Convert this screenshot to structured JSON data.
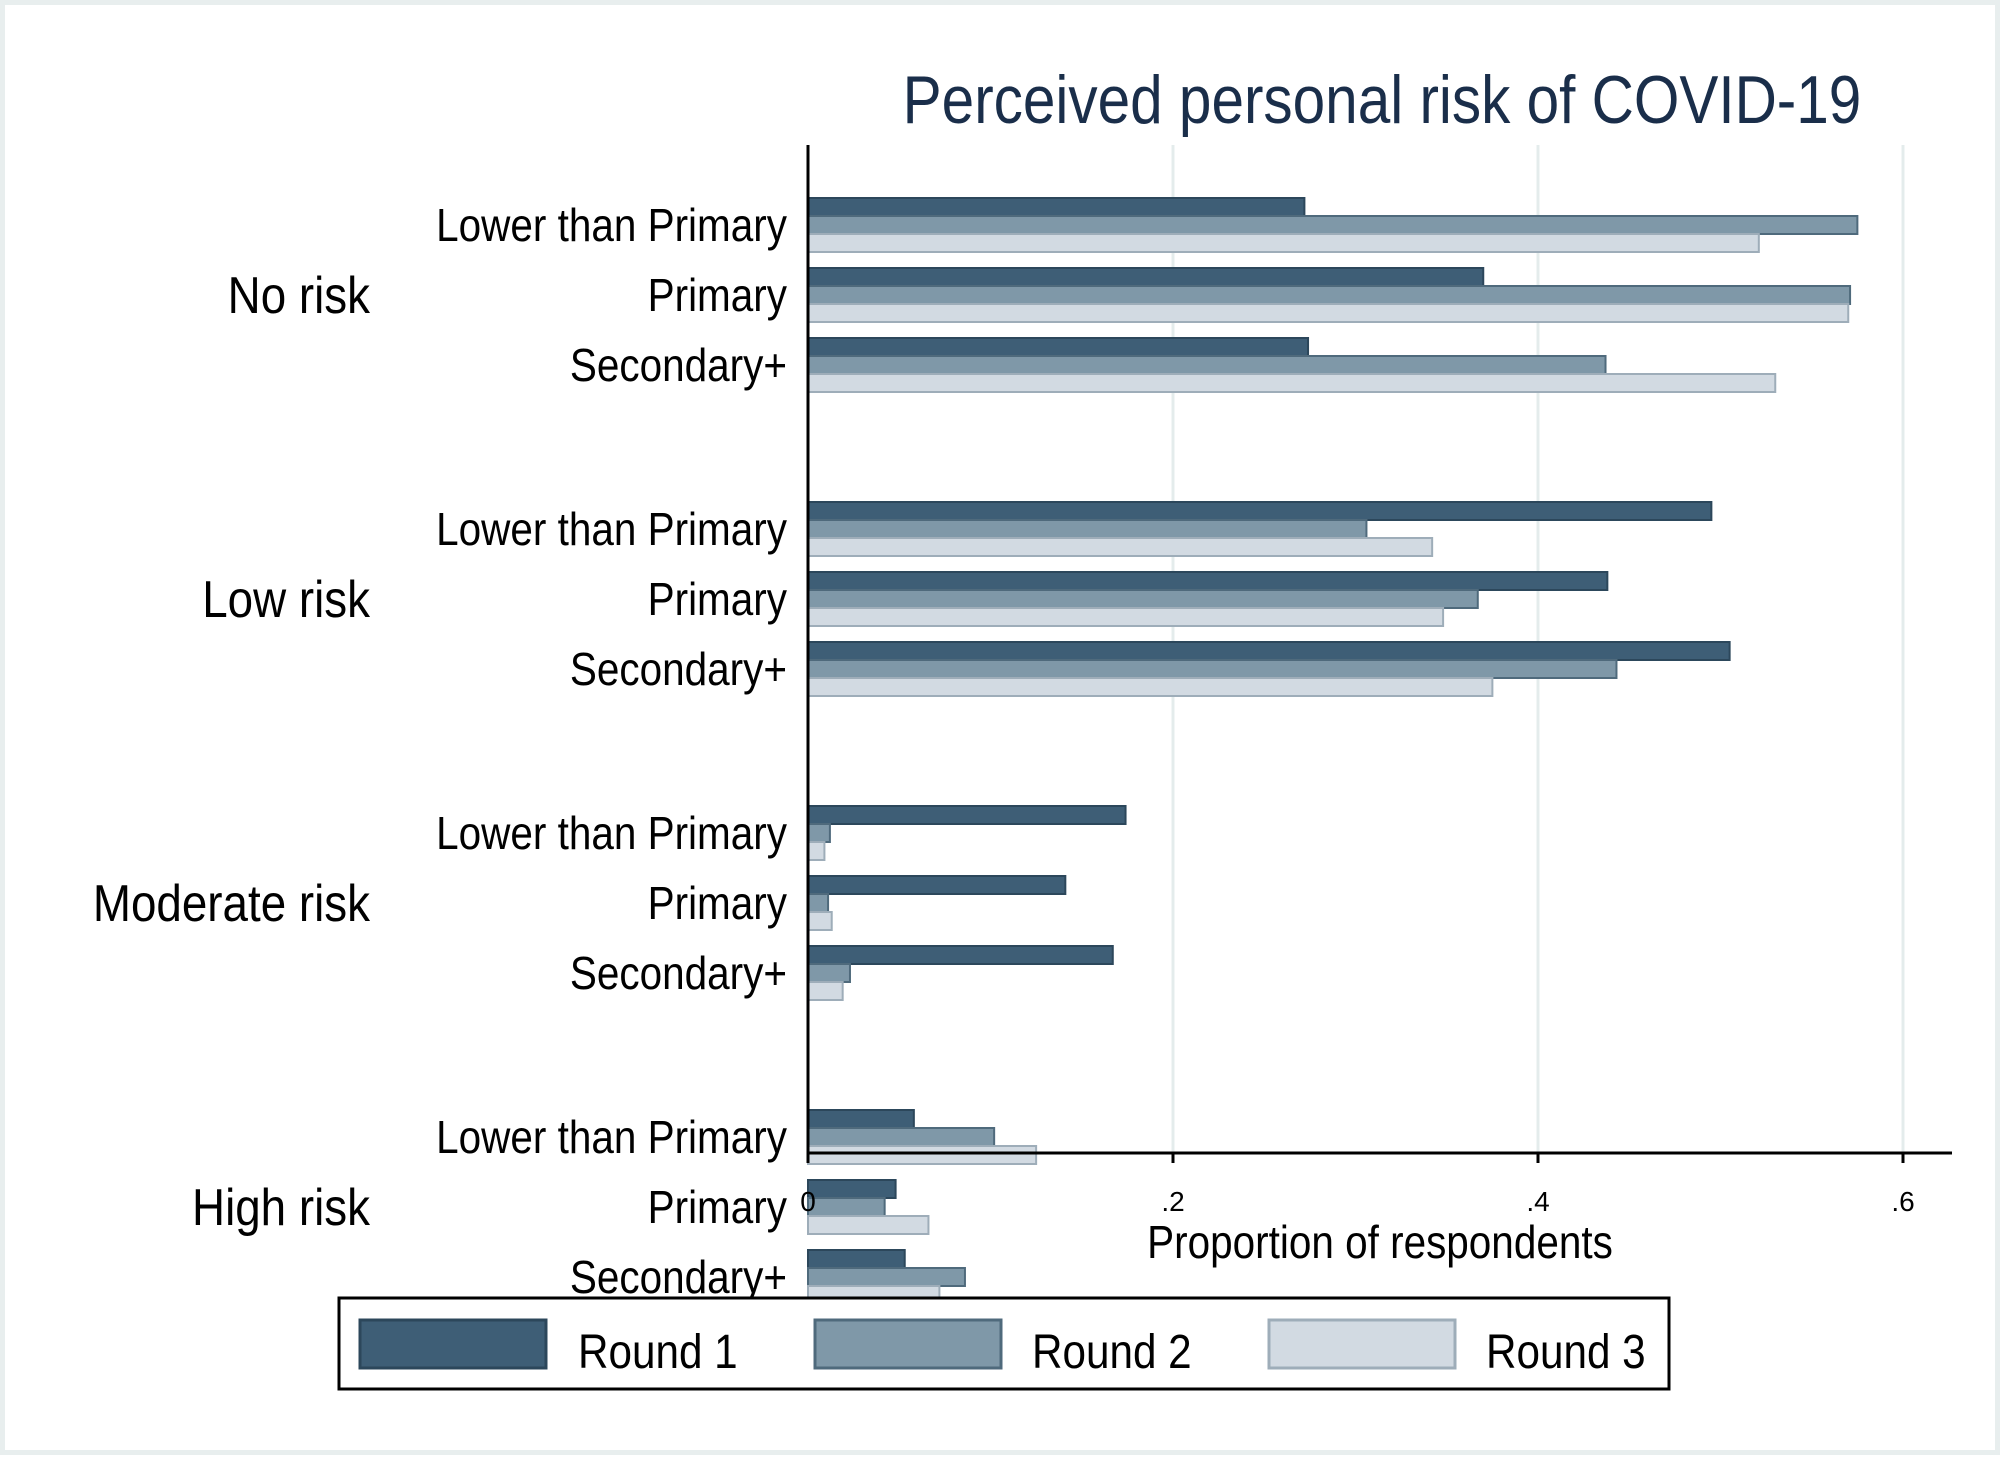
{
  "colors": {
    "background": "#ffffff",
    "frame": "#e8eeee",
    "title": "#1a2e4a",
    "grid": "#e4ecec",
    "axis": "#000000",
    "round1_fill": "#3e5e76",
    "round1_stroke": "#2c475b",
    "round2_fill": "#7f98a8",
    "round2_stroke": "#4f6a7c",
    "round3_fill": "#d2dae2",
    "round3_stroke": "#9eadb9"
  },
  "chart_data": {
    "type": "bar",
    "orientation": "horizontal",
    "title": "Perceived personal risk of COVID-19",
    "xlabel": "Proportion of respondents",
    "ylabel": "",
    "xlim": [
      0,
      0.625
    ],
    "xticks": [
      {
        "value": 0,
        "label": "0"
      },
      {
        "value": 0.2,
        "label": ".2"
      },
      {
        "value": 0.4,
        "label": ".4"
      },
      {
        "value": 0.6,
        "label": ".6"
      }
    ],
    "grid": true,
    "legend_position": "bottom",
    "groups": [
      {
        "label": "No risk",
        "categories": [
          {
            "label": "Lower than Primary",
            "values": [
              0.272,
              0.575,
              0.521
            ]
          },
          {
            "label": "Primary",
            "values": [
              0.37,
              0.571,
              0.57
            ]
          },
          {
            "label": "Secondary+",
            "values": [
              0.274,
              0.437,
              0.53
            ]
          }
        ]
      },
      {
        "label": "Low risk",
        "categories": [
          {
            "label": "Lower than Primary",
            "values": [
              0.495,
              0.306,
              0.342
            ]
          },
          {
            "label": "Primary",
            "values": [
              0.438,
              0.367,
              0.348
            ]
          },
          {
            "label": "Secondary+",
            "values": [
              0.505,
              0.443,
              0.375
            ]
          }
        ]
      },
      {
        "label": "Moderate risk",
        "categories": [
          {
            "label": "Lower than Primary",
            "values": [
              0.174,
              0.012,
              0.009
            ]
          },
          {
            "label": "Primary",
            "values": [
              0.141,
              0.011,
              0.013
            ]
          },
          {
            "label": "Secondary+",
            "values": [
              0.167,
              0.023,
              0.019
            ]
          }
        ]
      },
      {
        "label": "High risk",
        "categories": [
          {
            "label": "Lower than Primary",
            "values": [
              0.058,
              0.102,
              0.125
            ]
          },
          {
            "label": "Primary",
            "values": [
              0.048,
              0.042,
              0.066
            ]
          },
          {
            "label": "Secondary+",
            "values": [
              0.053,
              0.086,
              0.072
            ]
          }
        ]
      }
    ],
    "series": [
      {
        "name": "Round 1"
      },
      {
        "name": "Round 2"
      },
      {
        "name": "Round 3"
      }
    ]
  }
}
